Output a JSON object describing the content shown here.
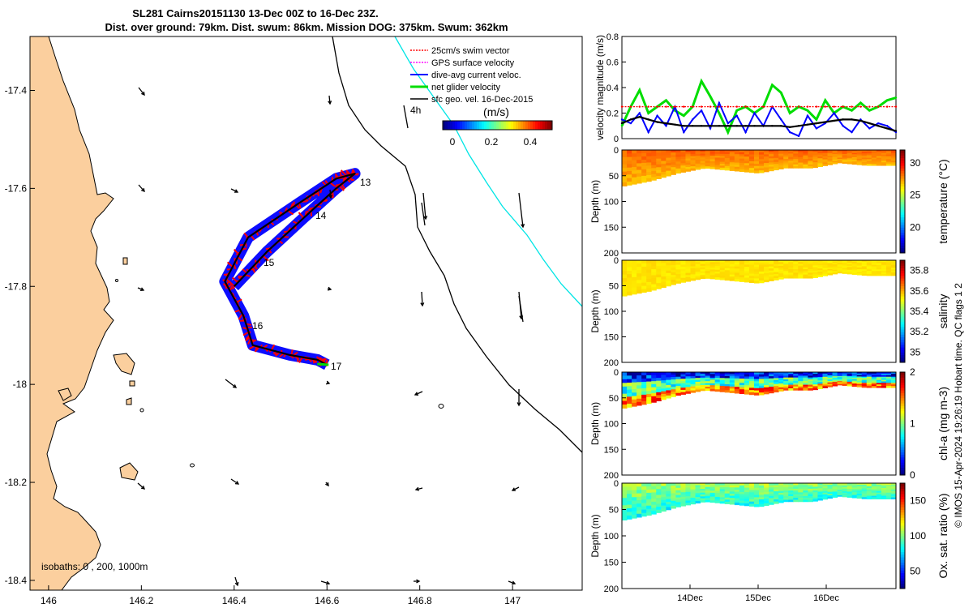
{
  "title": {
    "line1": "SL281 Cairns20151130 13-Dec 00Z to 16-Dec 23Z.",
    "line2": "Dist. over ground: 79km. Dist. swum: 86km. Mission DOG: 375km. Swum: 362km"
  },
  "map": {
    "legend": [
      {
        "label": "25cm/s swim vector",
        "color": "#ff0000"
      },
      {
        "label": "GPS surface velocity",
        "color": "#ff00ff"
      },
      {
        "label": "dive-avg current veloc.",
        "color": "#0000ff"
      },
      {
        "label": "net glider velocity",
        "color": "#00dd00"
      },
      {
        "label": "sfc geo. vel. 16-Dec-2015",
        "color": "#000000"
      }
    ],
    "legend_note": "4h",
    "colorbar_title": "(m/s)",
    "colorbar_ticks": [
      "0",
      "0.2",
      "0.4"
    ],
    "isobath_note": "isobaths: 0 , 200, 1000m",
    "day_labels": [
      "13",
      "14",
      "15",
      "16",
      "17"
    ],
    "colors": {
      "land": "#fbcf9e",
      "isobath_1000": "#00e5e5",
      "track": "#000000"
    }
  },
  "chart_data": [
    {
      "type": "map",
      "x": [
        146.4,
        146.47,
        146.55,
        146.62,
        146.66,
        146.62,
        146.54,
        146.43,
        146.38,
        146.42,
        146.44,
        146.52,
        146.58,
        146.6
      ],
      "y": [
        -17.8,
        -17.73,
        -17.66,
        -17.6,
        -17.57,
        -17.58,
        -17.63,
        -17.7,
        -17.79,
        -17.86,
        -17.92,
        -17.94,
        -17.95,
        -17.96
      ],
      "xlim": [
        145.96,
        147.15
      ],
      "ylim": [
        -18.42,
        -17.29
      ],
      "xticks": [
        "146",
        "146.2",
        "146.4",
        "146.6",
        "146.8",
        "147"
      ],
      "yticks": [
        "-17.4",
        "-17.6",
        "-17.8",
        "-18",
        "-18.2",
        "-18.4"
      ]
    },
    {
      "type": "line",
      "ylabel": "velocity magnitude (m/s)",
      "ylim": [
        0,
        0.8
      ],
      "yticks": [
        "0",
        "0.2",
        "0.4",
        "0.6",
        "0.8"
      ],
      "series": [
        {
          "name": "net glider velocity",
          "color": "#00dd00",
          "values": [
            0.1,
            0.25,
            0.38,
            0.2,
            0.25,
            0.3,
            0.22,
            0.18,
            0.25,
            0.45,
            0.33,
            0.2,
            0.05,
            0.22,
            0.25,
            0.2,
            0.25,
            0.42,
            0.36,
            0.2,
            0.25,
            0.22,
            0.15,
            0.3,
            0.2,
            0.25,
            0.22,
            0.28,
            0.22,
            0.25,
            0.3,
            0.32
          ]
        },
        {
          "name": "dive-avg current",
          "color": "#0000ff",
          "values": [
            0.15,
            0.12,
            0.2,
            0.05,
            0.18,
            0.1,
            0.25,
            0.05,
            0.15,
            0.22,
            0.08,
            0.28,
            0.12,
            0.18,
            0.05,
            0.2,
            0.1,
            0.25,
            0.15,
            0.05,
            0.02,
            0.18,
            0.08,
            0.12,
            0.2,
            0.1,
            0.05,
            0.15,
            0.08,
            0.12,
            0.1,
            0.05
          ]
        },
        {
          "name": "sfc geo. vel.",
          "color": "#000000",
          "values": [
            0.12,
            0.15,
            0.17,
            0.15,
            0.13,
            0.12,
            0.11,
            0.1,
            0.1,
            0.1,
            0.1,
            0.1,
            0.1,
            0.1,
            0.1,
            0.1,
            0.1,
            0.1,
            0.1,
            0.09,
            0.1,
            0.11,
            0.12,
            0.13,
            0.14,
            0.15,
            0.15,
            0.14,
            0.12,
            0.1,
            0.08,
            0.06
          ]
        },
        {
          "name": "25cm/s swim",
          "color": "#ff0000",
          "values": [
            0.25,
            0.25,
            0.25,
            0.25,
            0.25,
            0.25,
            0.25,
            0.25,
            0.25,
            0.25,
            0.25,
            0.25,
            0.25,
            0.25,
            0.25,
            0.25,
            0.25,
            0.25,
            0.25,
            0.25,
            0.25,
            0.25,
            0.25,
            0.25,
            0.25,
            0.25,
            0.25,
            0.25,
            0.25,
            0.25,
            0.25,
            0.25
          ]
        }
      ]
    },
    {
      "type": "heatmap",
      "ylabel": "Depth (m)",
      "clabel": "temperature (°C)",
      "ylim": [
        0,
        200
      ],
      "yticks": [
        "0",
        "50",
        "100",
        "150",
        "200"
      ],
      "cticks": [
        "20",
        "25",
        "30"
      ],
      "crange": [
        16,
        32
      ],
      "base_value": 28.5,
      "depth_top_m": [
        70,
        60,
        45,
        35,
        40,
        45,
        35,
        35,
        25,
        30,
        30
      ]
    },
    {
      "type": "heatmap",
      "ylabel": "Depth (m)",
      "clabel": "salinity",
      "ylim": [
        0,
        200
      ],
      "yticks": [
        "0",
        "50",
        "100",
        "150",
        "200"
      ],
      "cticks": [
        "35",
        "35.2",
        "35.4",
        "35.6",
        "35.8"
      ],
      "crange": [
        34.9,
        35.9
      ],
      "base_value": 35.55,
      "depth_top_m": [
        70,
        60,
        45,
        35,
        40,
        45,
        35,
        35,
        25,
        30,
        30
      ]
    },
    {
      "type": "heatmap",
      "ylabel": "Depth (m)",
      "clabel": "chl-a (mg m-3)",
      "ylim": [
        0,
        200
      ],
      "yticks": [
        "0",
        "50",
        "100",
        "150",
        "200"
      ],
      "cticks": [
        "0",
        "1",
        "2"
      ],
      "crange": [
        0,
        2
      ],
      "base_value": 0.5,
      "depth_top_m": [
        70,
        60,
        45,
        35,
        40,
        45,
        35,
        35,
        25,
        30,
        30
      ]
    },
    {
      "type": "heatmap",
      "ylabel": "Depth (m)",
      "clabel": "Ox. sat. ratio (%)",
      "ylim": [
        0,
        200
      ],
      "yticks": [
        "0",
        "50",
        "100",
        "150",
        "200"
      ],
      "cticks": [
        "50",
        "100",
        "150"
      ],
      "crange": [
        25,
        175
      ],
      "base_value": 105,
      "depth_top_m": [
        70,
        60,
        45,
        35,
        40,
        45,
        35,
        35,
        25,
        30,
        30
      ]
    }
  ],
  "time_axis": {
    "ticks": [
      "14Dec",
      "15Dec",
      "16Dec"
    ]
  },
  "side_note": "© IMOS 15-Apr-2024 19:26:19 Hobart time. QC flags 1  2"
}
